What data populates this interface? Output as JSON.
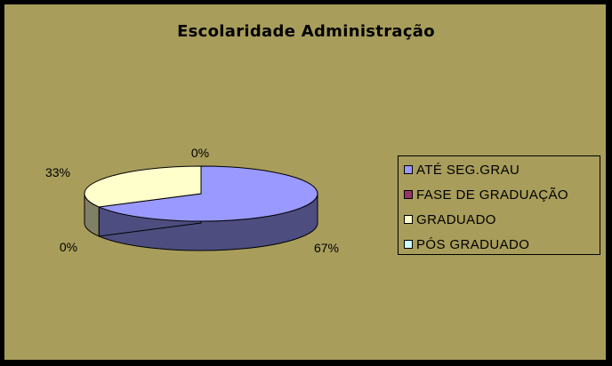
{
  "chart_data": {
    "type": "pie",
    "title": "Escolaridade Administração",
    "categories": [
      "ATÉ SEG.GRAU",
      "FASE DE GRADUAÇÃO",
      "GRADUADO",
      "PÓS GRADUADO"
    ],
    "values": [
      67,
      0,
      33,
      0
    ],
    "data_labels": [
      "67%",
      "0%",
      "33%",
      "0%"
    ],
    "colors": [
      "#9999ff",
      "#993366",
      "#ffffcc",
      "#ccffff"
    ],
    "legend_position": "right",
    "three_d": true
  },
  "colors": {
    "background": "#000000",
    "chart_area": "#a89d5b"
  }
}
